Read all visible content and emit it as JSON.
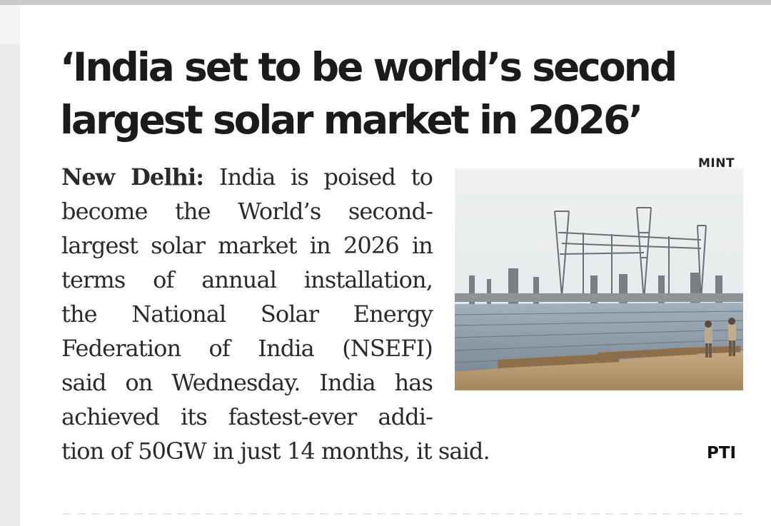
{
  "article": {
    "headline_lines": [
      "‘India set to be world’s second",
      "largest solar market in 2026’"
    ],
    "dateline": "New Delhi:",
    "body_lines": [
      "India is poised to",
      "become the World’s second-",
      "largest solar market in 2026 in",
      "terms of annual installation,",
      "the National Solar Energy",
      "Federation of India (NSEFI)",
      "said on Wednesday. India has",
      "achieved its fastest-ever addi-",
      "tion of 50GW in just 14 months, it said."
    ],
    "photo_credit": "MINT",
    "agency_credit": "PTI"
  },
  "photo": {
    "icon": "solar-farm-photo",
    "colors": {
      "sky": "#e9ecee",
      "panels": "#8c9aa6",
      "ground": "#b89a72",
      "towers": "#6b6f74"
    }
  }
}
